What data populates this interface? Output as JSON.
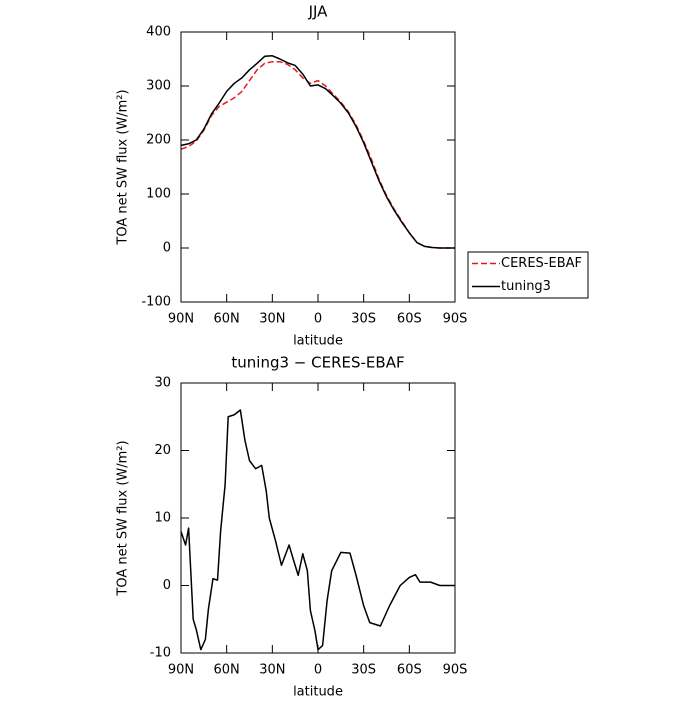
{
  "chart_data": [
    {
      "type": "line",
      "title": "JJA",
      "x_label": "latitude",
      "y_label": "TOA net SW flux (W/m²)",
      "x": [
        90,
        85,
        80,
        75,
        70,
        65,
        60,
        55,
        50,
        45,
        40,
        35,
        30,
        25,
        20,
        15,
        10,
        5,
        0,
        -5,
        -10,
        -15,
        -20,
        -25,
        -30,
        -35,
        -40,
        -45,
        -50,
        -55,
        -60,
        -65,
        -70,
        -75,
        -80,
        -85,
        -90
      ],
      "series": [
        {
          "name": "CERES-EBAF",
          "color": "#e31a1c",
          "dash": true,
          "values": [
            183,
            188,
            198,
            218,
            245,
            262,
            270,
            278,
            290,
            310,
            330,
            342,
            345,
            345,
            340,
            330,
            315,
            305,
            310,
            300,
            285,
            270,
            252,
            228,
            198,
            165,
            128,
            97,
            72,
            50,
            28,
            10,
            3,
            1,
            0,
            0,
            0
          ]
        },
        {
          "name": "tuning3",
          "color": "#000000",
          "dash": false,
          "values": [
            190,
            193,
            200,
            220,
            248,
            268,
            290,
            305,
            315,
            330,
            342,
            355,
            356,
            350,
            343,
            338,
            322,
            300,
            302,
            295,
            282,
            268,
            250,
            225,
            195,
            160,
            125,
            95,
            70,
            48,
            28,
            10,
            3,
            1,
            0,
            0,
            0
          ]
        }
      ],
      "xlim": [
        90,
        -90
      ],
      "xticks": [
        {
          "value": 90,
          "label": "90N"
        },
        {
          "value": 60,
          "label": "60N"
        },
        {
          "value": 30,
          "label": "30N"
        },
        0,
        {
          "value": -30,
          "label": "30S"
        },
        {
          "value": -60,
          "label": "60S"
        },
        {
          "value": -90,
          "label": "90S"
        }
      ],
      "ylim": [
        -100,
        400
      ],
      "yticks": [
        -100,
        0,
        100,
        200,
        300,
        400
      ],
      "legend": "outside right"
    },
    {
      "type": "line",
      "title": "tuning3 − CERES-EBAF",
      "x_label": "latitude",
      "y_label": "TOA net SW flux (W/m²)",
      "x": [
        90,
        87,
        85,
        82,
        80,
        77,
        74,
        72,
        69,
        66,
        64,
        61,
        59,
        55,
        51,
        48,
        45,
        41,
        37,
        34,
        32,
        28,
        24,
        19,
        16,
        13,
        10,
        7,
        5,
        2,
        0,
        -3,
        -6,
        -9,
        -15,
        -21,
        -25,
        -30,
        -34,
        -41,
        -47,
        -54,
        -60,
        -64,
        -67,
        -74,
        -80,
        -90
      ],
      "series": [
        {
          "color": "#000000",
          "dash": false,
          "values": [
            8,
            6,
            8.5,
            -5,
            -6.5,
            -9.5,
            -8,
            -3.5,
            1,
            0.8,
            8,
            15,
            25,
            25.3,
            26,
            21.5,
            18.5,
            17.3,
            17.8,
            14,
            10,
            6.7,
            3,
            6,
            3.7,
            1.5,
            4.7,
            2.2,
            -3.7,
            -6.7,
            -9.5,
            -8.9,
            -2.2,
            2.2,
            4.9,
            4.8,
            1.5,
            -3,
            -5.5,
            -6,
            -3,
            0,
            1.2,
            1.6,
            0.5,
            0.5,
            0,
            0
          ]
        }
      ],
      "xlim": [
        90,
        -90
      ],
      "xticks": [
        {
          "value": 90,
          "label": "90N"
        },
        {
          "value": 60,
          "label": "60N"
        },
        {
          "value": 30,
          "label": "30N"
        },
        0,
        {
          "value": -30,
          "label": "30S"
        },
        {
          "value": -60,
          "label": "60S"
        },
        {
          "value": -90,
          "label": "90S"
        }
      ],
      "ylim": [
        -10,
        30
      ],
      "yticks": [
        -10,
        0,
        10,
        20,
        30
      ]
    }
  ]
}
